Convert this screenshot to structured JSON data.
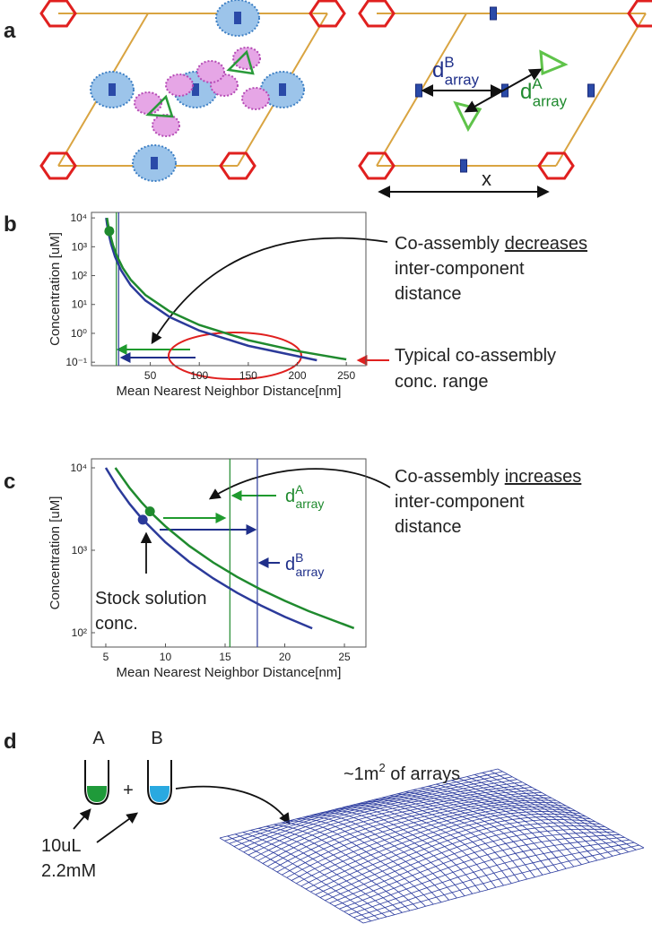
{
  "panel_labels": [
    "a",
    "b",
    "c",
    "d"
  ],
  "panel_a": {
    "d_b": {
      "base": "d",
      "sup": "B",
      "sub": "array"
    },
    "d_a": {
      "base": "d",
      "sup": "A",
      "sub": "array"
    },
    "x": "x"
  },
  "chart_data": [
    {
      "type": "line",
      "x_label": "Mean Nearest Neighbor Distance[nm]",
      "y_label": "Concentration [uM]",
      "xlim": [
        -10,
        270
      ],
      "ylim": [
        0.076,
        15500
      ],
      "log_y": true,
      "grid": false,
      "xticks": [
        50,
        100,
        150,
        200,
        250
      ],
      "yticks": [
        {
          "value": 0.1,
          "label": "10⁻¹"
        },
        {
          "value": 1,
          "label": "10⁰"
        },
        {
          "value": 10,
          "label": "10¹"
        },
        {
          "value": 100,
          "label": "10²"
        },
        {
          "value": 1000,
          "label": "10³"
        },
        {
          "value": 10000,
          "label": "10⁴"
        }
      ],
      "series": [
        {
          "color": "#2b3a9a",
          "x": [
            5,
            6,
            8,
            10,
            14,
            20,
            30,
            45,
            70,
            100,
            150,
            220
          ],
          "values": [
            10000,
            5787,
            2441,
            1250,
            456,
            156,
            46.3,
            13.7,
            3.64,
            1.25,
            0.37,
            0.117
          ]
        },
        {
          "color": "#1f8a2e",
          "x": [
            5.8,
            7,
            9,
            12,
            16,
            22,
            30,
            45,
            70,
            100,
            150,
            200,
            250
          ],
          "values": [
            10000,
            5685,
            2675,
            1128,
            476,
            183,
            72.2,
            21.4,
            5.69,
            1.95,
            0.578,
            0.244,
            0.125
          ]
        }
      ],
      "vlines": [
        {
          "x": 15.4,
          "color": "#1f8a2e"
        },
        {
          "x": 17.7,
          "color": "#2b3a9a"
        }
      ],
      "points": [
        {
          "x": 8.2,
          "y": 3500,
          "color": "#1f8a2e"
        }
      ],
      "annotations": {
        "note1": {
          "pre": "Co-assembly",
          "key": "decreases",
          "line2": "inter-component",
          "line3": "distance"
        },
        "note2": {
          "line1": "Typical co-assembly",
          "line2": "conc. range"
        }
      }
    },
    {
      "type": "line",
      "x_label": "Mean Nearest Neighbor Distance[nm]",
      "y_label": "Concentration [uM]",
      "xlim": [
        3.8,
        26.8
      ],
      "ylim": [
        67,
        12850
      ],
      "log_y": true,
      "grid": false,
      "xticks": [
        5,
        10,
        15,
        20,
        25
      ],
      "yticks": [
        {
          "value": 100,
          "label": "10²"
        },
        {
          "value": 1000,
          "label": "10³"
        },
        {
          "value": 10000,
          "label": "10⁴"
        }
      ],
      "series": [
        {
          "color": "#2b3a9a",
          "x": [
            5,
            6,
            7,
            8,
            10,
            12,
            14,
            16,
            18,
            20,
            22.3
          ],
          "values": [
            10000,
            5787,
            3644,
            2441,
            1250,
            723,
            456,
            305,
            214,
            156,
            113
          ]
        },
        {
          "color": "#1f8a2e",
          "x": [
            5.8,
            7,
            8,
            9,
            10,
            12,
            14,
            16,
            18,
            20,
            22,
            25.8
          ],
          "values": [
            10000,
            5685,
            3809,
            2675,
            1950,
            1128,
            711,
            476,
            334,
            244,
            183,
            113.5
          ]
        }
      ],
      "vlines": [
        {
          "x": 15.4,
          "color": "#1f8a2e"
        },
        {
          "x": 17.7,
          "color": "#2b3a9a"
        }
      ],
      "points": [
        {
          "x": 8.1,
          "y": 2352,
          "color": "#2b3a9a"
        },
        {
          "x": 8.7,
          "y": 2961,
          "color": "#1f8a2e"
        }
      ],
      "annotations": {
        "note1": {
          "pre": "Co-assembly",
          "key": "increases",
          "line2": "inter-component",
          "line3": "distance"
        },
        "d_a": {
          "base": "d",
          "sup": "A",
          "sub": "array"
        },
        "d_b": {
          "base": "d",
          "sup": "B",
          "sub": "array"
        },
        "stock": {
          "line1": "Stock solution",
          "line2": "conc."
        }
      }
    }
  ],
  "panel_d": {
    "label_a": "A",
    "label_b": "B",
    "plus": "+",
    "volume": "10uL",
    "conc": "2.2mM",
    "area": {
      "pre": "~1m",
      "sup": "2",
      "post": " of arrays"
    }
  }
}
